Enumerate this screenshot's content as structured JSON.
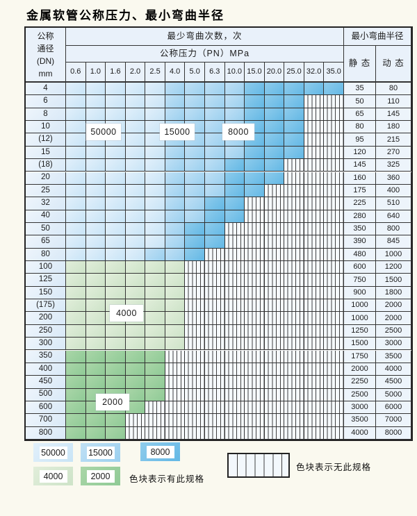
{
  "title": "金属软管公称压力、最小弯曲半径",
  "table": {
    "header": {
      "dn_lines": [
        "公称",
        "通径",
        "(DN)",
        "mm"
      ],
      "bend_cycles": "最少弯曲次数，次",
      "pressure": "公称压力（PN）MPa",
      "pressure_values": [
        "0.6",
        "1.0",
        "1.6",
        "2.0",
        "2.5",
        "4.0",
        "5.0",
        "6.3",
        "10.0",
        "15.0",
        "20.0",
        "25.0",
        "32.0",
        "35.0"
      ],
      "min_radius": "最小弯曲半径",
      "static": "静 态",
      "dynamic": "动 态"
    },
    "shade_legend": {
      "1": "50000次-浅蓝",
      "2": "15000次-中蓝",
      "3": "8000次-深蓝",
      "4": "4000次-浅绿",
      "5": "2000次-中绿",
      "0": "无此规格-竖线"
    },
    "rows": [
      {
        "dn": "4",
        "cells": [
          1,
          1,
          1,
          1,
          1,
          2,
          2,
          2,
          2,
          3,
          3,
          3,
          3,
          3
        ],
        "static": "35",
        "dynamic": "80"
      },
      {
        "dn": "6",
        "cells": [
          1,
          1,
          1,
          1,
          1,
          2,
          2,
          2,
          2,
          3,
          3,
          3,
          0,
          0
        ],
        "static": "50",
        "dynamic": "110"
      },
      {
        "dn": "8",
        "cells": [
          1,
          1,
          1,
          1,
          1,
          2,
          2,
          2,
          2,
          3,
          3,
          3,
          0,
          0
        ],
        "static": "65",
        "dynamic": "145"
      },
      {
        "dn": "10",
        "cells": [
          1,
          1,
          1,
          1,
          1,
          2,
          2,
          2,
          2,
          3,
          3,
          3,
          0,
          0
        ],
        "static": "80",
        "dynamic": "180"
      },
      {
        "dn": "(12)",
        "cells": [
          1,
          1,
          1,
          1,
          1,
          2,
          2,
          2,
          2,
          3,
          3,
          3,
          0,
          0
        ],
        "static": "95",
        "dynamic": "215"
      },
      {
        "dn": "15",
        "cells": [
          1,
          1,
          1,
          1,
          1,
          2,
          2,
          2,
          2,
          3,
          3,
          3,
          0,
          0
        ],
        "static": "120",
        "dynamic": "270"
      },
      {
        "dn": "(18)",
        "cells": [
          1,
          1,
          1,
          1,
          1,
          2,
          2,
          2,
          3,
          3,
          3,
          0,
          0,
          0
        ],
        "static": "145",
        "dynamic": "325"
      },
      {
        "dn": "20",
        "cells": [
          1,
          1,
          1,
          1,
          1,
          2,
          2,
          2,
          3,
          3,
          3,
          0,
          0,
          0
        ],
        "static": "160",
        "dynamic": "360"
      },
      {
        "dn": "25",
        "cells": [
          1,
          1,
          1,
          1,
          1,
          2,
          2,
          2,
          3,
          3,
          0,
          0,
          0,
          0
        ],
        "static": "175",
        "dynamic": "400"
      },
      {
        "dn": "32",
        "cells": [
          1,
          1,
          1,
          1,
          1,
          2,
          2,
          3,
          3,
          0,
          0,
          0,
          0,
          0
        ],
        "static": "225",
        "dynamic": "510"
      },
      {
        "dn": "40",
        "cells": [
          1,
          1,
          1,
          1,
          1,
          2,
          2,
          3,
          3,
          0,
          0,
          0,
          0,
          0
        ],
        "static": "280",
        "dynamic": "640"
      },
      {
        "dn": "50",
        "cells": [
          1,
          1,
          1,
          1,
          1,
          2,
          3,
          3,
          0,
          0,
          0,
          0,
          0,
          0
        ],
        "static": "350",
        "dynamic": "800"
      },
      {
        "dn": "65",
        "cells": [
          1,
          1,
          1,
          1,
          1,
          2,
          3,
          3,
          0,
          0,
          0,
          0,
          0,
          0
        ],
        "static": "390",
        "dynamic": "845"
      },
      {
        "dn": "80",
        "cells": [
          1,
          1,
          1,
          1,
          2,
          2,
          3,
          0,
          0,
          0,
          0,
          0,
          0,
          0
        ],
        "static": "480",
        "dynamic": "1000"
      },
      {
        "dn": "100",
        "cells": [
          4,
          4,
          4,
          4,
          4,
          4,
          0,
          0,
          0,
          0,
          0,
          0,
          0,
          0
        ],
        "static": "600",
        "dynamic": "1200"
      },
      {
        "dn": "125",
        "cells": [
          4,
          4,
          4,
          4,
          4,
          4,
          0,
          0,
          0,
          0,
          0,
          0,
          0,
          0
        ],
        "static": "750",
        "dynamic": "1500"
      },
      {
        "dn": "150",
        "cells": [
          4,
          4,
          4,
          4,
          4,
          4,
          0,
          0,
          0,
          0,
          0,
          0,
          0,
          0
        ],
        "static": "900",
        "dynamic": "1800"
      },
      {
        "dn": "(175)",
        "cells": [
          4,
          4,
          4,
          4,
          4,
          4,
          0,
          0,
          0,
          0,
          0,
          0,
          0,
          0
        ],
        "static": "1000",
        "dynamic": "2000"
      },
      {
        "dn": "200",
        "cells": [
          4,
          4,
          4,
          4,
          4,
          4,
          0,
          0,
          0,
          0,
          0,
          0,
          0,
          0
        ],
        "static": "1000",
        "dynamic": "2000"
      },
      {
        "dn": "250",
        "cells": [
          4,
          4,
          4,
          4,
          4,
          4,
          0,
          0,
          0,
          0,
          0,
          0,
          0,
          0
        ],
        "static": "1250",
        "dynamic": "2500"
      },
      {
        "dn": "300",
        "cells": [
          4,
          4,
          4,
          4,
          4,
          4,
          0,
          0,
          0,
          0,
          0,
          0,
          0,
          0
        ],
        "static": "1500",
        "dynamic": "3000"
      },
      {
        "dn": "350",
        "cells": [
          5,
          5,
          5,
          5,
          5,
          0,
          0,
          0,
          0,
          0,
          0,
          0,
          0,
          0
        ],
        "static": "1750",
        "dynamic": "3500"
      },
      {
        "dn": "400",
        "cells": [
          5,
          5,
          5,
          5,
          5,
          0,
          0,
          0,
          0,
          0,
          0,
          0,
          0,
          0
        ],
        "static": "2000",
        "dynamic": "4000"
      },
      {
        "dn": "450",
        "cells": [
          5,
          5,
          5,
          5,
          5,
          0,
          0,
          0,
          0,
          0,
          0,
          0,
          0,
          0
        ],
        "static": "2250",
        "dynamic": "4500"
      },
      {
        "dn": "500",
        "cells": [
          5,
          5,
          5,
          5,
          5,
          0,
          0,
          0,
          0,
          0,
          0,
          0,
          0,
          0
        ],
        "static": "2500",
        "dynamic": "5000"
      },
      {
        "dn": "600",
        "cells": [
          5,
          5,
          5,
          5,
          0,
          0,
          0,
          0,
          0,
          0,
          0,
          0,
          0,
          0
        ],
        "static": "3000",
        "dynamic": "6000"
      },
      {
        "dn": "700",
        "cells": [
          5,
          5,
          5,
          0,
          0,
          0,
          0,
          0,
          0,
          0,
          0,
          0,
          0,
          0
        ],
        "static": "3500",
        "dynamic": "7000"
      },
      {
        "dn": "800",
        "cells": [
          5,
          5,
          5,
          0,
          0,
          0,
          0,
          0,
          0,
          0,
          0,
          0,
          0,
          0
        ],
        "static": "4000",
        "dynamic": "8000"
      }
    ],
    "float_labels": [
      {
        "text": "50000"
      },
      {
        "text": "15000"
      },
      {
        "text": "8000"
      },
      {
        "text": "4000"
      },
      {
        "text": "2000"
      }
    ]
  },
  "legend": {
    "swatches": [
      {
        "value": "50000",
        "shade": "b1"
      },
      {
        "value": "15000",
        "shade": "b2"
      },
      {
        "value": "8000",
        "shade": "b3"
      },
      {
        "value": "4000",
        "shade": "g1"
      },
      {
        "value": "2000",
        "shade": "g2"
      }
    ],
    "has_spec_note": "色块表示有此规格",
    "no_spec_note": "色块表示无此规格"
  }
}
